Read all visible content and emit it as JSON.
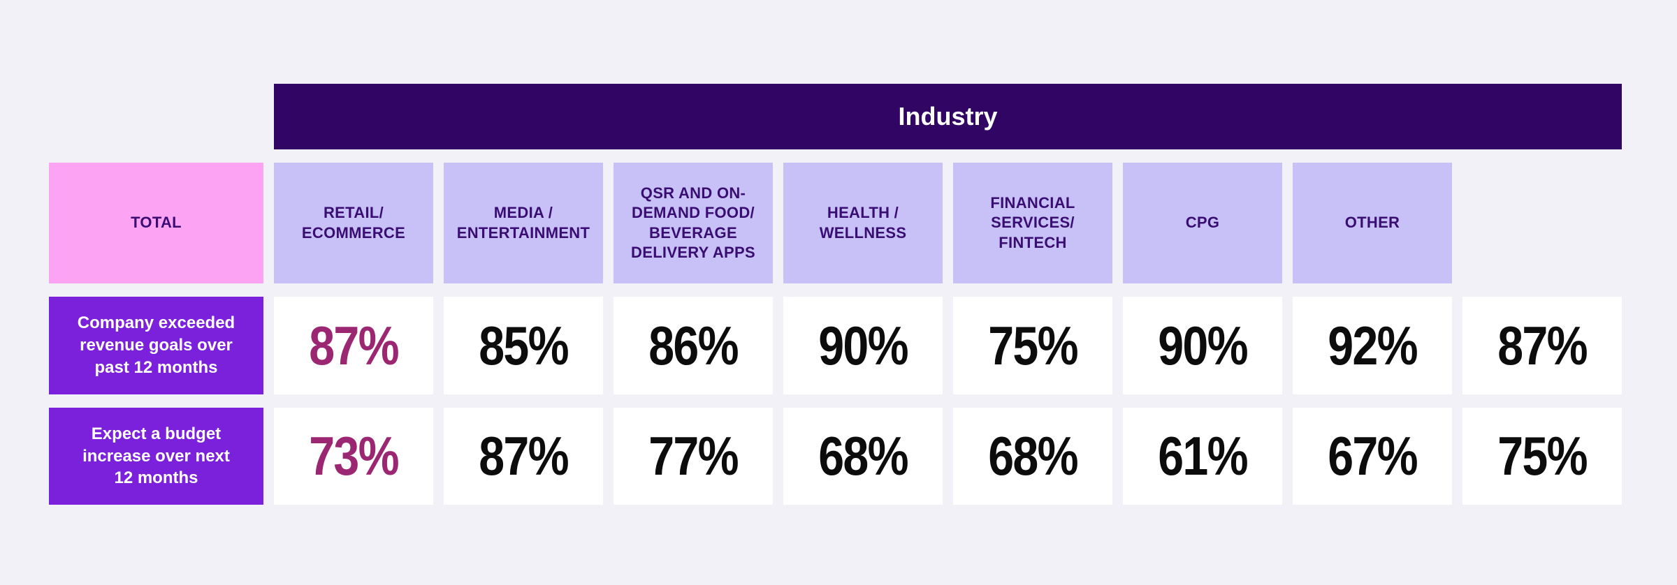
{
  "page": {
    "background_color": "#F2F1F8"
  },
  "colors": {
    "group_header_bg": "#310564",
    "group_header_text": "#FFFFFF",
    "column_header_bg": "#C7C1F7",
    "column_header_total_bg": "#FDA3F3",
    "column_header_text": "#3A0D73",
    "row_label_bg": "#7B21DB",
    "row_label_text": "#FFFFFF",
    "value_cell_bg": "#FFFFFF",
    "value_text": "#0C0C0C",
    "total_value_text": "#9B2672"
  },
  "table": {
    "group_header": "Industry",
    "columns": [
      "TOTAL",
      "RETAIL/\nECOMMERCE",
      "MEDIA /\nENTERTAINMENT",
      "QSR AND ON-\nDEMAND FOOD/\nBEVERAGE\nDELIVERY APPS",
      "HEALTH /\nWELLNESS",
      "FINANCIAL\nSERVICES/\nFINTECH",
      "CPG",
      "OTHER"
    ],
    "rows": [
      {
        "label": "Company exceeded\nrevenue goals over\npast 12 months",
        "values": [
          "87%",
          "85%",
          "86%",
          "90%",
          "75%",
          "90%",
          "92%",
          "87%"
        ]
      },
      {
        "label": "Expect a budget\nincrease over next\n12 months",
        "values": [
          "73%",
          "87%",
          "77%",
          "68%",
          "68%",
          "61%",
          "67%",
          "75%"
        ]
      }
    ]
  },
  "chart_data": {
    "type": "table",
    "title": "Industry",
    "categories": [
      "TOTAL",
      "RETAIL/ECOMMERCE",
      "MEDIA / ENTERTAINMENT",
      "QSR AND ON-DEMAND FOOD/BEVERAGE DELIVERY APPS",
      "HEALTH / WELLNESS",
      "FINANCIAL SERVICES/FINTECH",
      "CPG",
      "OTHER"
    ],
    "series": [
      {
        "name": "Company exceeded revenue goals over past 12 months",
        "values": [
          87,
          85,
          86,
          90,
          75,
          90,
          92,
          87
        ],
        "unit": "%"
      },
      {
        "name": "Expect a budget increase over next 12 months",
        "values": [
          73,
          87,
          77,
          68,
          68,
          61,
          67,
          75
        ],
        "unit": "%"
      }
    ],
    "highlight_column": "TOTAL",
    "legend_position": "none",
    "grid": false
  }
}
